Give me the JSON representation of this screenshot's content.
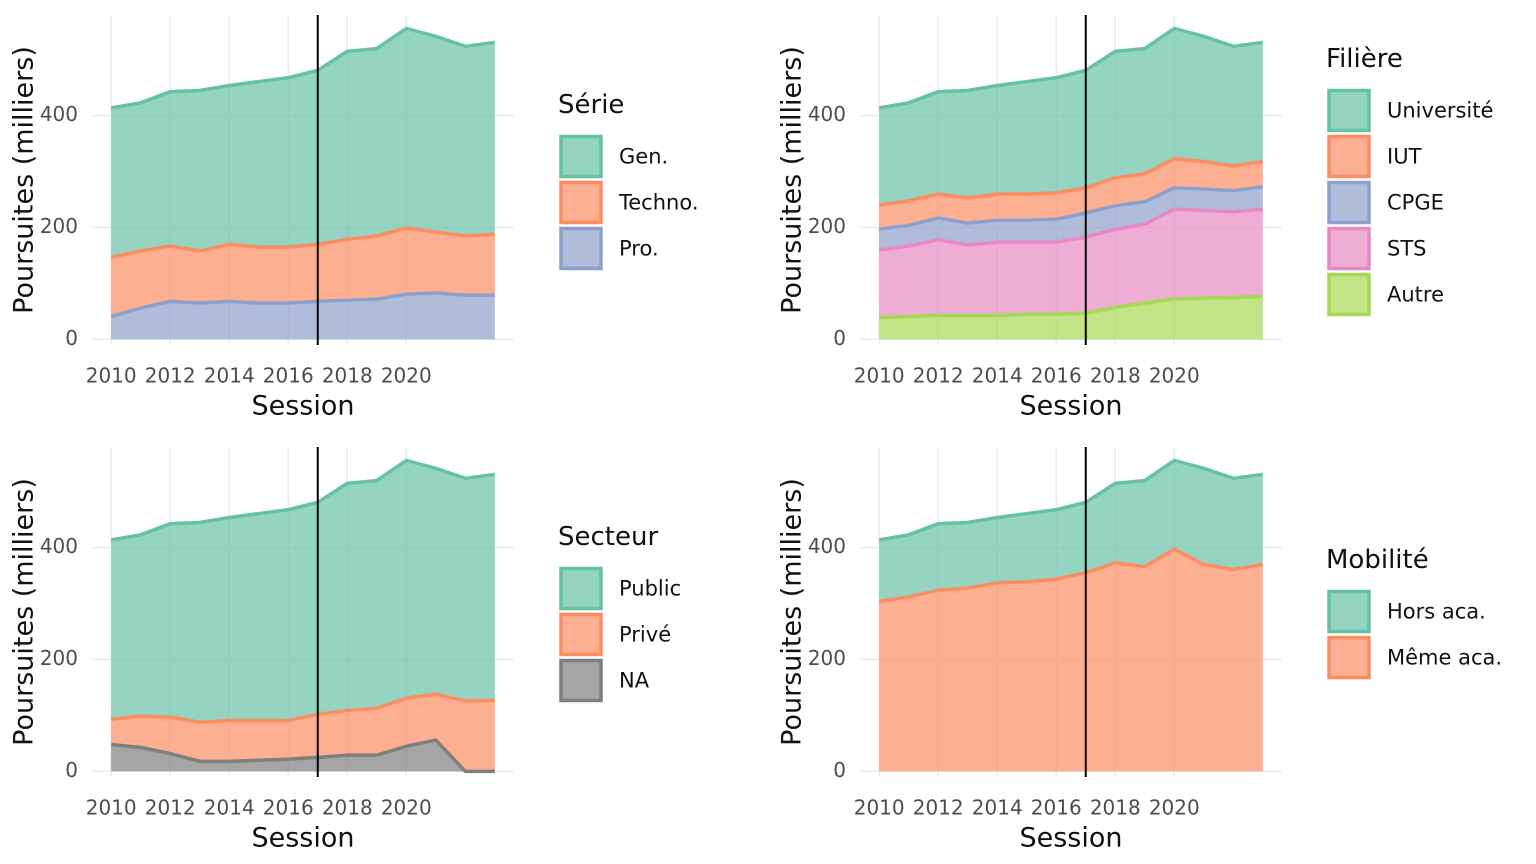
{
  "chart_data": [
    {
      "type": "area",
      "xlabel": "Session",
      "ylabel": "Poursuites (milliers)",
      "legend_title": "Série",
      "x": [
        2010,
        2011,
        2012,
        2013,
        2014,
        2015,
        2016,
        2017,
        2018,
        2019,
        2020,
        2021,
        2022,
        2023
      ],
      "series": [
        {
          "name": "Gen.",
          "color": "#66c2a5",
          "values": [
            267,
            265,
            276,
            287,
            284,
            296,
            303,
            311,
            336,
            335,
            357,
            350,
            339,
            343
          ]
        },
        {
          "name": "Techno.",
          "color": "#fc8d62",
          "values": [
            106,
            102,
            99,
            93,
            102,
            100,
            100,
            102,
            109,
            113,
            118,
            109,
            106,
            109
          ]
        },
        {
          "name": "Pro.",
          "color": "#8da0cb",
          "values": [
            41,
            56,
            68,
            65,
            68,
            65,
            65,
            68,
            70,
            72,
            81,
            83,
            79,
            79
          ]
        }
      ],
      "xlim": [
        2009.35,
        2023.65
      ],
      "ylim": [
        -10,
        580
      ],
      "xticks": [
        2010,
        2012,
        2014,
        2016,
        2018,
        2020
      ],
      "yticks": [
        0,
        200,
        400
      ],
      "vline": 2017,
      "grid": true
    },
    {
      "type": "area",
      "xlabel": "Session",
      "ylabel": "Poursuites (milliers)",
      "legend_title": "Filière",
      "x": [
        2010,
        2011,
        2012,
        2013,
        2014,
        2015,
        2016,
        2017,
        2018,
        2019,
        2020,
        2021,
        2022,
        2023
      ],
      "series": [
        {
          "name": "Université",
          "color": "#66c2a5",
          "values": [
            174,
            175,
            183,
            192,
            194,
            201,
            206,
            210,
            226,
            224,
            233,
            224,
            214,
            213
          ]
        },
        {
          "name": "IUT",
          "color": "#fc8d62",
          "values": [
            43,
            44,
            43,
            45,
            47,
            47,
            47,
            45,
            50,
            50,
            52,
            49,
            44,
            45
          ]
        },
        {
          "name": "CPGE",
          "color": "#8da0cb",
          "values": [
            37,
            37,
            39,
            39,
            39,
            39,
            41,
            43,
            42,
            40,
            38,
            38,
            38,
            40
          ]
        },
        {
          "name": "STS",
          "color": "#e78ac3",
          "values": [
            121,
            126,
            135,
            126,
            131,
            129,
            129,
            136,
            140,
            141,
            161,
            157,
            153,
            156
          ]
        },
        {
          "name": "Autre",
          "color": "#a6d854",
          "values": [
            39,
            41,
            43,
            43,
            43,
            45,
            45,
            47,
            57,
            65,
            72,
            74,
            75,
            77
          ]
        }
      ],
      "xlim": [
        2009.35,
        2023.65
      ],
      "ylim": [
        -10,
        580
      ],
      "xticks": [
        2010,
        2012,
        2014,
        2016,
        2018,
        2020
      ],
      "yticks": [
        0,
        200,
        400
      ],
      "vline": 2017,
      "grid": true
    },
    {
      "type": "area",
      "xlabel": "Session",
      "ylabel": "Poursuites (milliers)",
      "legend_title": "Secteur",
      "x": [
        2010,
        2011,
        2012,
        2013,
        2014,
        2015,
        2016,
        2017,
        2018,
        2019,
        2020,
        2021,
        2022,
        2023
      ],
      "series": [
        {
          "name": "Public",
          "color": "#66c2a5",
          "values": [
            321,
            324,
            346,
            357,
            363,
            370,
            377,
            379,
            406,
            407,
            425,
            404,
            398,
            404
          ]
        },
        {
          "name": "Privé",
          "color": "#fc8d62",
          "values": [
            45,
            56,
            65,
            70,
            73,
            71,
            69,
            77,
            80,
            84,
            86,
            82,
            126,
            127
          ]
        },
        {
          "name": "NA",
          "color": "#7f7f7f",
          "values": [
            48,
            43,
            32,
            18,
            18,
            20,
            22,
            25,
            29,
            29,
            45,
            56,
            0,
            0
          ]
        }
      ],
      "xlim": [
        2009.35,
        2023.65
      ],
      "ylim": [
        -10,
        580
      ],
      "xticks": [
        2010,
        2012,
        2014,
        2016,
        2018,
        2020
      ],
      "yticks": [
        0,
        200,
        400
      ],
      "vline": 2017,
      "grid": true
    },
    {
      "type": "area",
      "xlabel": "Session",
      "ylabel": "Poursuites (milliers)",
      "legend_title": "Mobilité",
      "x": [
        2010,
        2011,
        2012,
        2013,
        2014,
        2015,
        2016,
        2017,
        2018,
        2019,
        2020,
        2021,
        2022,
        2023
      ],
      "series": [
        {
          "name": "Hors aca.",
          "color": "#66c2a5",
          "values": [
            110,
            111,
            119,
            117,
            117,
            122,
            124,
            126,
            142,
            154,
            159,
            172,
            163,
            161
          ]
        },
        {
          "name": "Même aca.",
          "color": "#fc8d62",
          "values": [
            304,
            312,
            324,
            328,
            337,
            339,
            344,
            355,
            373,
            366,
            397,
            370,
            361,
            370
          ]
        }
      ],
      "xlim": [
        2009.35,
        2023.65
      ],
      "ylim": [
        -10,
        580
      ],
      "xticks": [
        2010,
        2012,
        2014,
        2016,
        2018,
        2020
      ],
      "yticks": [
        0,
        200,
        400
      ],
      "vline": 2017,
      "grid": true
    }
  ]
}
